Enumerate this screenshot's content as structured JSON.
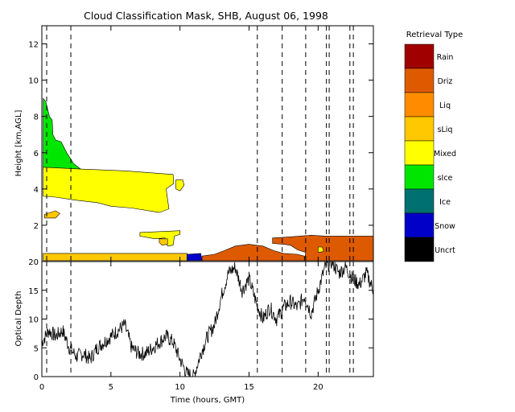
{
  "title": "Cloud Classification Mask, SHB, August 06, 1998",
  "chart_data": [
    {
      "type": "heatmap",
      "title": "Cloud Classification Mask, SHB, August 06, 1998",
      "xlabel": "Time (hours, GMT)",
      "ylabel": "Height [km,AGL]",
      "xlim": [
        0,
        24
      ],
      "ylim": [
        0,
        13
      ],
      "xticks": [
        "0",
        "5",
        "10",
        "15",
        "20"
      ],
      "yticks": [
        "2",
        "4",
        "6",
        "8",
        "10",
        "12"
      ],
      "vlines": [
        0.35,
        2.1,
        15.6,
        17.4,
        19.1,
        20.6,
        20.8,
        22.3,
        22.55
      ],
      "legend": {
        "title": "Retrieval Type",
        "entries": [
          {
            "label": "Rain",
            "color": "#a00000"
          },
          {
            "label": "Driz",
            "color": "#de5a00"
          },
          {
            "label": "Liq",
            "color": "#ff8c00"
          },
          {
            "label": "sLiq",
            "color": "#ffc800"
          },
          {
            "label": "Mixed",
            "color": "#ffff00"
          },
          {
            "label": "sIce",
            "color": "#00e600"
          },
          {
            "label": "Ice",
            "color": "#007070"
          },
          {
            "label": "Snow",
            "color": "#0000c8"
          },
          {
            "label": "Uncrt",
            "color": "#000000"
          }
        ]
      },
      "regions": [
        {
          "class": "sIce",
          "polygon": [
            [
              0.1,
              9.0
            ],
            [
              0.3,
              8.8
            ],
            [
              0.55,
              8.0
            ],
            [
              0.75,
              7.8
            ],
            [
              0.8,
              7.0
            ],
            [
              1.0,
              6.7
            ],
            [
              1.4,
              6.6
            ],
            [
              1.8,
              6.0
            ],
            [
              2.3,
              5.4
            ],
            [
              2.8,
              5.1
            ],
            [
              0.1,
              5.1
            ]
          ]
        },
        {
          "class": "Mixed",
          "polygon": [
            [
              0.1,
              5.2
            ],
            [
              2.8,
              5.1
            ],
            [
              6.0,
              5.0
            ],
            [
              9.5,
              4.8
            ],
            [
              9.55,
              4.3
            ],
            [
              9.0,
              4.0
            ],
            [
              9.2,
              2.9
            ],
            [
              8.5,
              2.7
            ],
            [
              6.5,
              2.95
            ],
            [
              5.0,
              3.05
            ],
            [
              4.0,
              3.25
            ],
            [
              2.3,
              3.4
            ],
            [
              1.0,
              3.55
            ],
            [
              0.1,
              3.6
            ]
          ]
        },
        {
          "class": "Mixed",
          "polygon": [
            [
              9.7,
              4.5
            ],
            [
              10.2,
              4.5
            ],
            [
              10.3,
              4.2
            ],
            [
              10.0,
              3.9
            ],
            [
              9.7,
              4.0
            ]
          ]
        },
        {
          "class": "sLiq",
          "polygon": [
            [
              0.2,
              2.6
            ],
            [
              1.0,
              2.8
            ],
            [
              1.3,
              2.65
            ],
            [
              1.0,
              2.4
            ],
            [
              0.2,
              2.4
            ]
          ]
        },
        {
          "class": "Mixed",
          "polygon": [
            [
              7.1,
              1.6
            ],
            [
              10.0,
              1.7
            ],
            [
              10.0,
              1.5
            ],
            [
              9.6,
              1.4
            ],
            [
              9.5,
              0.9
            ],
            [
              9.1,
              0.85
            ],
            [
              8.9,
              1.3
            ],
            [
              8.2,
              1.25
            ],
            [
              7.1,
              1.4
            ]
          ]
        },
        {
          "class": "sLiq",
          "polygon": [
            [
              8.5,
              1.25
            ],
            [
              9.1,
              1.25
            ],
            [
              9.1,
              0.95
            ],
            [
              8.7,
              0.9
            ],
            [
              8.5,
              1.05
            ]
          ]
        },
        {
          "class": "sLiq",
          "polygon": [
            [
              0.1,
              0.45
            ],
            [
              10.5,
              0.45
            ],
            [
              10.5,
              0.05
            ],
            [
              0.1,
              0.05
            ]
          ]
        },
        {
          "class": "Snow",
          "polygon": [
            [
              10.5,
              0.4
            ],
            [
              11.5,
              0.45
            ],
            [
              11.6,
              0.05
            ],
            [
              10.5,
              0.05
            ]
          ]
        },
        {
          "class": "Driz",
          "polygon": [
            [
              11.6,
              0.3
            ],
            [
              12.5,
              0.4
            ],
            [
              13.2,
              0.6
            ],
            [
              14.0,
              0.85
            ],
            [
              15.0,
              0.95
            ],
            [
              16.0,
              0.85
            ],
            [
              16.8,
              0.6
            ],
            [
              17.5,
              0.45
            ],
            [
              18.5,
              0.4
            ],
            [
              19.0,
              0.3
            ],
            [
              19.0,
              0.05
            ],
            [
              11.6,
              0.05
            ]
          ]
        },
        {
          "class": "Driz",
          "polygon": [
            [
              16.7,
              1.3
            ],
            [
              17.8,
              1.35
            ],
            [
              19.5,
              1.45
            ],
            [
              20.5,
              1.4
            ],
            [
              21.5,
              1.4
            ],
            [
              24.0,
              1.4
            ],
            [
              24.0,
              0.05
            ],
            [
              19.0,
              0.05
            ],
            [
              19.1,
              0.5
            ],
            [
              18.5,
              0.65
            ],
            [
              18.0,
              0.9
            ],
            [
              17.5,
              0.95
            ],
            [
              16.7,
              1.0
            ]
          ]
        },
        {
          "class": "Mixed",
          "polygon": [
            [
              20.0,
              0.8
            ],
            [
              20.3,
              0.8
            ],
            [
              20.4,
              0.55
            ],
            [
              20.0,
              0.5
            ]
          ]
        }
      ]
    },
    {
      "type": "line",
      "xlabel": "Time (hours, GMT)",
      "ylabel": "Optical Depth",
      "xlim": [
        0,
        24
      ],
      "ylim": [
        0,
        20
      ],
      "xticks": [
        "0",
        "5",
        "10",
        "15",
        "20"
      ],
      "yticks": [
        "0",
        "5",
        "10",
        "15",
        "20"
      ],
      "vlines": [
        0.35,
        2.1,
        15.6,
        17.4,
        19.1,
        20.6,
        20.8,
        22.3,
        22.55
      ],
      "series": [
        {
          "x": [
            0.0,
            0.5,
            1.0,
            1.5,
            2.0,
            2.5,
            3.0,
            3.5,
            4.0,
            4.5,
            5.0,
            5.5,
            6.0,
            6.5,
            7.0,
            7.5,
            8.0,
            8.5,
            9.0,
            9.5,
            10.0,
            10.5,
            11.0,
            11.5,
            12.0,
            12.5,
            13.0,
            13.5,
            14.0,
            14.5,
            15.0,
            15.5,
            16.0,
            16.5,
            17.0,
            17.5,
            18.0,
            18.5,
            19.0,
            19.5,
            20.0,
            20.5,
            21.0,
            21.5,
            22.0,
            22.5,
            23.0,
            23.5,
            24.0
          ],
          "values": [
            6,
            8,
            7,
            8,
            5,
            3.5,
            4,
            3,
            5,
            6,
            7,
            8,
            9,
            5,
            4,
            4,
            5,
            6,
            7,
            6,
            3,
            0.5,
            0,
            4,
            7,
            9,
            14,
            18,
            19,
            15,
            17,
            13,
            10,
            12,
            10,
            12,
            13,
            12,
            14,
            11,
            15,
            19,
            20,
            18,
            19,
            17,
            16,
            18,
            15
          ]
        }
      ]
    }
  ]
}
